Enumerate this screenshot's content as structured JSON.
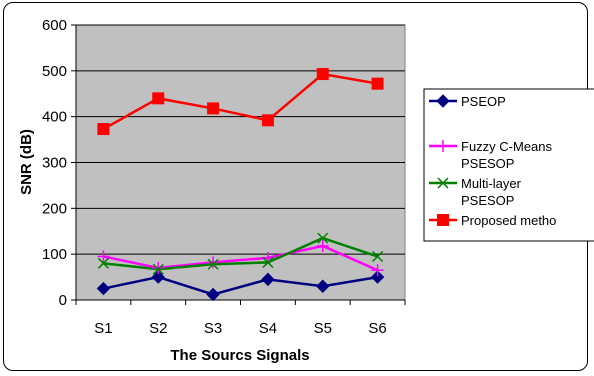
{
  "chart_data": {
    "type": "line",
    "title": "",
    "xlabel": "The Sourcs Signals",
    "ylabel": "SNR (dB)",
    "categories": [
      "S1",
      "S2",
      "S3",
      "S4",
      "S5",
      "S6"
    ],
    "ylim": [
      0,
      600
    ],
    "yticks": [
      0,
      100,
      200,
      300,
      400,
      500,
      600
    ],
    "grid": true,
    "plot_background": "#c0c0c0",
    "legend_position": "right",
    "series": [
      {
        "name": "PSEOP",
        "label_lines": [
          "PSEOP"
        ],
        "color": "#000080",
        "marker": "diamond",
        "values": [
          25,
          50,
          12,
          45,
          30,
          50
        ]
      },
      {
        "name": "Fuzzy C-Means PSESOP",
        "label_lines": [
          "Fuzzy C-Means",
          "PSESOP"
        ],
        "color": "#ff00ff",
        "marker": "plus",
        "values": [
          95,
          70,
          82,
          92,
          118,
          65
        ]
      },
      {
        "name": "Multi-layer PSESOP",
        "label_lines": [
          "Multi-layer",
          "PSESOP"
        ],
        "color": "#008000",
        "marker": "x",
        "values": [
          80,
          67,
          78,
          82,
          135,
          95
        ]
      },
      {
        "name": "Proposed metho",
        "label_lines": [
          "Proposed metho"
        ],
        "color": "#ff0000",
        "marker": "square",
        "values": [
          373,
          440,
          418,
          392,
          493,
          472
        ]
      }
    ]
  }
}
